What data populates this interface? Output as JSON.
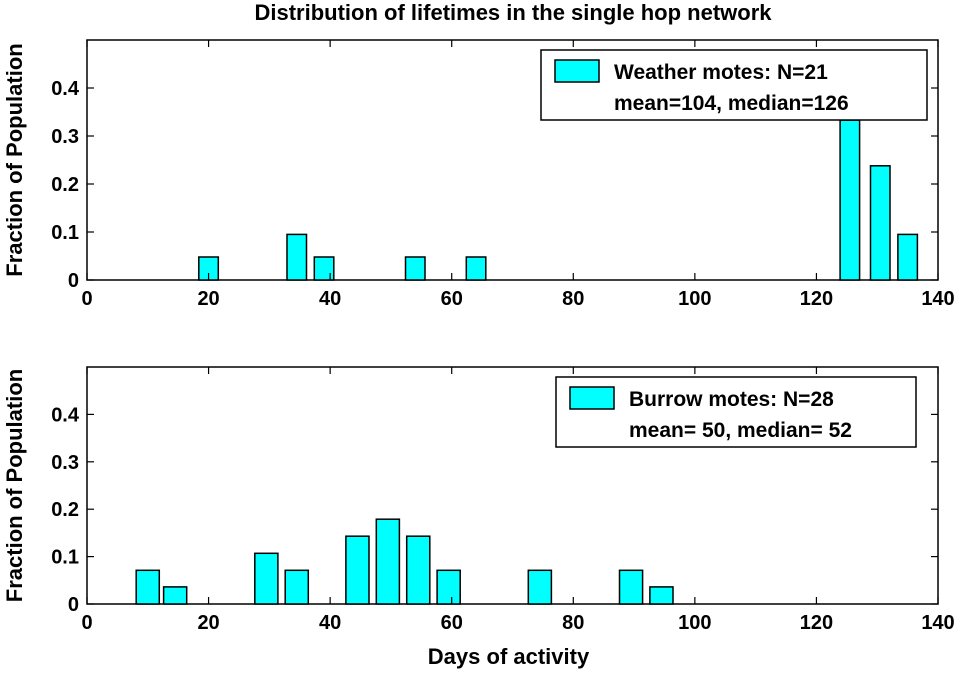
{
  "figure": {
    "title": "Distribution of lifetimes in the single hop network",
    "bar_color": "#00ffff",
    "edge_color": "#000000"
  },
  "chart_data": [
    {
      "type": "bar",
      "ylabel": "Fraction of Population",
      "xlabel": "",
      "xlim": [
        0,
        140
      ],
      "ylim": [
        0,
        0.5
      ],
      "xticks": [
        "0",
        "20",
        "40",
        "60",
        "80",
        "100",
        "120",
        "140"
      ],
      "yticks": [
        "0",
        "0.1",
        "0.2",
        "0.3",
        "0.4"
      ],
      "bin_width": 3.2,
      "x": [
        20,
        34.5,
        39,
        54,
        64,
        125.5,
        130.5,
        135
      ],
      "values": [
        0.048,
        0.095,
        0.048,
        0.048,
        0.048,
        0.333,
        0.238,
        0.095
      ],
      "legend": {
        "position": "top-right",
        "series_label": "Weather motes: N=21",
        "stats": "mean=104, median=126"
      },
      "grid": false
    },
    {
      "type": "bar",
      "ylabel": "Fraction of Population",
      "xlabel": "Days of activity",
      "xlim": [
        0,
        140
      ],
      "ylim": [
        0,
        0.5
      ],
      "xticks": [
        "0",
        "20",
        "40",
        "60",
        "80",
        "100",
        "120",
        "140"
      ],
      "yticks": [
        "0",
        "0.1",
        "0.2",
        "0.3",
        "0.4"
      ],
      "bin_width": 3.8,
      "x": [
        10,
        14.5,
        29.5,
        34.5,
        44.5,
        49.5,
        54.5,
        59.5,
        74.5,
        89.5,
        94.5
      ],
      "values": [
        0.071,
        0.036,
        0.107,
        0.071,
        0.143,
        0.179,
        0.143,
        0.071,
        0.071,
        0.071,
        0.036
      ],
      "legend": {
        "position": "top-right",
        "series_label": "Burrow motes: N=28",
        "stats": "mean= 50, median= 52"
      },
      "grid": false
    }
  ]
}
